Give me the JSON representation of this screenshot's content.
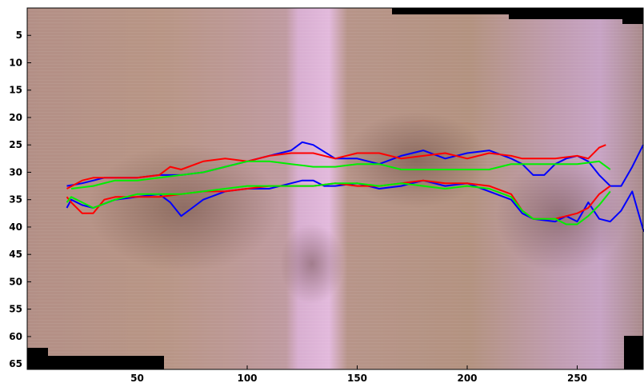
{
  "chart_data": {
    "type": "line",
    "title": "",
    "xlabel": "",
    "ylabel": "",
    "xlim": [
      0,
      280
    ],
    "ylim": [
      0,
      66
    ],
    "y_reversed": true,
    "grid": false,
    "legend": "none",
    "background": {
      "kind": "photograph",
      "description_colors": [
        "#b89488",
        "#ddb2d6",
        "#8e6a62"
      ],
      "black_corners": [
        "top-right",
        "bottom-left",
        "bottom-right"
      ]
    },
    "x_ticks": [
      50,
      100,
      150,
      200,
      250
    ],
    "x_tick_labels": [
      "50",
      "100",
      "150",
      "200",
      "250"
    ],
    "y_ticks": [
      5,
      10,
      15,
      20,
      25,
      30,
      35,
      40,
      45,
      50,
      55,
      60,
      65
    ],
    "y_tick_labels": [
      "5",
      "10",
      "15",
      "20",
      "25",
      "30",
      "35",
      "40",
      "45",
      "50",
      "55",
      "60",
      "65"
    ],
    "series": [
      {
        "color": "#0000ff",
        "x": [
          18,
          25,
          35,
          50,
          60,
          70,
          80,
          90,
          100,
          110,
          120,
          125,
          130,
          140,
          150,
          160,
          170,
          180,
          190,
          200,
          210,
          220,
          225,
          230,
          235,
          240,
          245,
          250,
          255,
          260,
          265,
          270,
          275,
          280
        ],
        "y": [
          32.5,
          32,
          31,
          31,
          30.5,
          30.5,
          30,
          29,
          28,
          27,
          26,
          24.5,
          25,
          27.5,
          27.5,
          28.5,
          27,
          26,
          27.5,
          26.5,
          26,
          27.5,
          28.5,
          30.5,
          30.5,
          28.5,
          27.5,
          27,
          28,
          30.5,
          32.5,
          32.5,
          29,
          25
        ]
      },
      {
        "color": "#0000ff",
        "x": [
          18,
          20,
          25,
          30,
          40,
          50,
          60,
          65,
          70,
          75,
          80,
          90,
          100,
          110,
          120,
          125,
          130,
          135,
          140,
          150,
          160,
          170,
          180,
          190,
          200,
          210,
          220,
          225,
          230,
          240,
          245,
          250,
          255,
          260,
          265,
          270,
          275,
          280,
          283
        ],
        "y": [
          36.5,
          35,
          36,
          36.5,
          35,
          34.5,
          34,
          35.5,
          38,
          36.5,
          35,
          33.5,
          33,
          33,
          32,
          31.5,
          31.5,
          32.5,
          32.5,
          32,
          33,
          32.5,
          31.5,
          32.5,
          32,
          33.5,
          35,
          37.5,
          38.5,
          39,
          38,
          39,
          35.5,
          38.5,
          39,
          37,
          33.5,
          40.5,
          42
        ]
      },
      {
        "color": "#ff0000",
        "x": [
          18,
          25,
          30,
          40,
          50,
          60,
          65,
          70,
          80,
          90,
          100,
          110,
          120,
          130,
          140,
          150,
          160,
          170,
          180,
          190,
          200,
          210,
          220,
          225,
          230,
          240,
          250,
          255,
          260,
          263
        ],
        "y": [
          33,
          31.5,
          31,
          31,
          31,
          30.5,
          29,
          29.5,
          28,
          27.5,
          28,
          27,
          26.5,
          26.5,
          27.5,
          26.5,
          26.5,
          27.5,
          27,
          26.5,
          27.5,
          26.5,
          27,
          27.5,
          27.5,
          27.5,
          27,
          27.5,
          25.5,
          25
        ]
      },
      {
        "color": "#ff0000",
        "x": [
          18,
          20,
          25,
          30,
          35,
          40,
          50,
          60,
          70,
          80,
          90,
          100,
          110,
          120,
          130,
          140,
          150,
          160,
          170,
          180,
          190,
          200,
          210,
          220,
          225,
          230,
          240,
          245,
          250,
          255,
          260,
          265
        ],
        "y": [
          34.5,
          35.5,
          37.5,
          37.5,
          35,
          34.5,
          34.5,
          34.5,
          34,
          33.5,
          33.5,
          33,
          32.5,
          32.5,
          32.5,
          32,
          32.5,
          32.5,
          32,
          31.5,
          32,
          32,
          32.5,
          34,
          37,
          38.5,
          38.5,
          38,
          37.5,
          36.5,
          34,
          32.5
        ]
      },
      {
        "color": "#00ee00",
        "x": [
          20,
          30,
          40,
          50,
          60,
          70,
          80,
          90,
          100,
          110,
          120,
          130,
          140,
          150,
          160,
          170,
          180,
          190,
          200,
          210,
          220,
          230,
          240,
          250,
          260,
          265
        ],
        "y": [
          33,
          32.5,
          31.5,
          31.5,
          31,
          30.5,
          30,
          29,
          28,
          28,
          28.5,
          29,
          29,
          28.5,
          28.5,
          29.5,
          29.5,
          29.5,
          29.5,
          29.5,
          28.5,
          28.5,
          28.5,
          28.5,
          28,
          29.5
        ]
      },
      {
        "color": "#00ee00",
        "x": [
          18,
          20,
          25,
          30,
          40,
          50,
          60,
          70,
          80,
          90,
          100,
          110,
          120,
          130,
          140,
          150,
          160,
          170,
          180,
          190,
          200,
          210,
          220,
          225,
          230,
          240,
          245,
          250,
          255,
          260,
          265
        ],
        "y": [
          35.5,
          34.5,
          35.5,
          36.5,
          35,
          34,
          34,
          34,
          33.5,
          33,
          32.5,
          32.5,
          32.5,
          32.5,
          32,
          32,
          32.5,
          32,
          32.5,
          33,
          32.5,
          33,
          34.5,
          37,
          38.5,
          38.5,
          39.5,
          39.5,
          38,
          36,
          33.5
        ]
      }
    ]
  }
}
